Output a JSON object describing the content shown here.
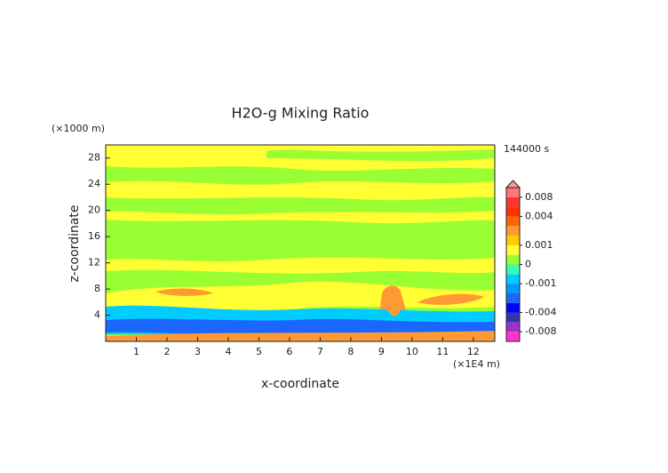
{
  "chart_data": {
    "type": "contour",
    "title": "H2O-g Mixing Ratio",
    "xlabel": "x-coordinate",
    "ylabel": "z-coordinate",
    "x_unit": "(×1E4 m)",
    "y_unit": "(×1000 m)",
    "time_label": "144000 s",
    "xlim": [
      0,
      12.7
    ],
    "ylim": [
      0,
      30
    ],
    "xticks": [
      1,
      2,
      3,
      4,
      5,
      6,
      7,
      8,
      9,
      10,
      11,
      12
    ],
    "yticks": [
      4,
      8,
      12,
      16,
      20,
      24,
      28
    ],
    "colorbar": {
      "levels": [
        -0.01,
        -0.008,
        -0.006,
        -0.004,
        -0.003,
        -0.002,
        -0.001,
        -0.0005,
        0,
        0.0005,
        0.001,
        0.002,
        0.003,
        0.004,
        0.006,
        0.008,
        0.01
      ],
      "colors": [
        "#ff33cc",
        "#9933cc",
        "#3333aa",
        "#0000ff",
        "#1a66ff",
        "#0099ff",
        "#00ccff",
        "#33ffaa",
        "#99ff33",
        "#ffff33",
        "#ffcc00",
        "#ff9933",
        "#ff6600",
        "#ff3300",
        "#ff3333",
        "#ff7777",
        "#ff9999"
      ],
      "ticks": [
        0.008,
        0.004,
        0.001,
        0,
        -0.001,
        -0.004,
        -0.008
      ]
    }
  }
}
